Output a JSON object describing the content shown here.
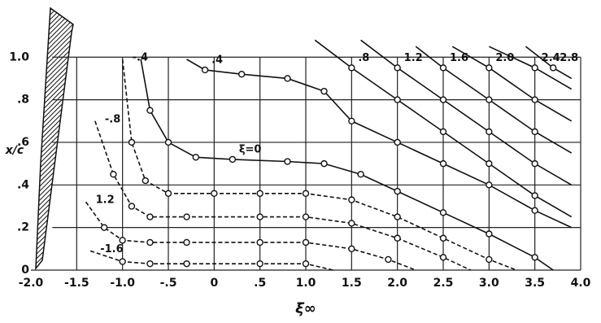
{
  "chart_data": {
    "type": "line",
    "x_label": "ξ∞",
    "y_label": "x/c",
    "xlim": [
      -2,
      4
    ],
    "ylim": [
      0,
      1.15
    ],
    "xticks": [
      {
        "value": -2,
        "label": "-2.0"
      },
      {
        "value": -1.5,
        "label": "-1.5"
      },
      {
        "value": -1,
        "label": "-1.0"
      },
      {
        "value": -0.5,
        "label": "-.5"
      },
      0,
      {
        "value": 0.5,
        "label": ".5"
      },
      {
        "value": 1,
        "label": "1.0"
      },
      {
        "value": 1.5,
        "label": "1.5"
      },
      {
        "value": 2,
        "label": "2.0"
      },
      {
        "value": 2.5,
        "label": "2.5"
      },
      {
        "value": 3,
        "label": "3.0"
      },
      {
        "value": 3.5,
        "label": "3.5"
      },
      {
        "value": 4,
        "label": "4.0"
      }
    ],
    "yticks": [
      0,
      {
        "value": 0.2,
        "label": ".2"
      },
      {
        "value": 0.4,
        "label": ".4"
      },
      {
        "value": 0.6,
        "label": ".6"
      },
      {
        "value": 0.8,
        "label": ".8"
      },
      {
        "value": 1,
        "label": "1.0"
      }
    ],
    "grid": true,
    "color": "#111111",
    "series": [
      {
        "name": "-1.6",
        "dashed": true,
        "x": [
          -1.35,
          -1.0,
          -0.7,
          -0.3,
          0.5,
          1.0,
          1.3
        ],
        "values": [
          0.09,
          0.04,
          0.03,
          0.03,
          0.03,
          0.03,
          0.0
        ]
      },
      {
        "name": "1.2",
        "dashed": true,
        "x": [
          -1.4,
          -1.2,
          -1.0,
          -0.7,
          -0.3,
          0.5,
          1.0,
          1.5,
          1.9,
          2.2
        ],
        "values": [
          0.32,
          0.2,
          0.14,
          0.13,
          0.13,
          0.13,
          0.13,
          0.1,
          0.05,
          0.0
        ]
      },
      {
        "name": "-.8",
        "dashed": true,
        "x": [
          -1.3,
          -1.1,
          -0.9,
          -0.7,
          -0.3,
          0.5,
          1.0,
          1.5,
          2.0,
          2.5,
          2.8
        ],
        "values": [
          0.7,
          0.45,
          0.3,
          0.25,
          0.25,
          0.25,
          0.25,
          0.22,
          0.15,
          0.06,
          0.0
        ]
      },
      {
        "name": "-.4",
        "dashed": true,
        "x": [
          -1.0,
          -0.9,
          -0.75,
          -0.5,
          0,
          0.5,
          1.0,
          1.5,
          2.0,
          2.5,
          3.0,
          3.3
        ],
        "values": [
          0.99,
          0.6,
          0.42,
          0.36,
          0.36,
          0.36,
          0.36,
          0.33,
          0.25,
          0.15,
          0.05,
          0.0
        ]
      },
      {
        "name": "ξ=0",
        "dashed": false,
        "x": [
          -0.8,
          -0.7,
          -0.5,
          -0.2,
          0.2,
          0.8,
          1.2,
          1.6,
          2.0,
          2.5,
          3.0,
          3.5,
          3.7
        ],
        "values": [
          0.99,
          0.75,
          0.6,
          0.53,
          0.52,
          0.51,
          0.5,
          0.45,
          0.37,
          0.27,
          0.17,
          0.06,
          0.0
        ]
      },
      {
        "name": ".4",
        "dashed": false,
        "x": [
          -0.3,
          -0.1,
          0.3,
          0.8,
          1.2,
          1.5,
          2.0,
          2.5,
          3.0,
          3.5,
          3.9
        ],
        "values": [
          0.99,
          0.94,
          0.92,
          0.9,
          0.84,
          0.7,
          0.6,
          0.5,
          0.4,
          0.28,
          0.2
        ]
      },
      {
        "name": ".8",
        "dashed": false,
        "x": [
          1.1,
          1.5,
          2.0,
          2.5,
          3.0,
          3.5,
          3.9
        ],
        "values": [
          1.08,
          0.95,
          0.8,
          0.65,
          0.5,
          0.35,
          0.25
        ]
      },
      {
        "name": "1.2",
        "dashed": false,
        "x": [
          1.6,
          2.0,
          2.5,
          3.0,
          3.5,
          3.9
        ],
        "values": [
          1.08,
          0.95,
          0.8,
          0.65,
          0.5,
          0.4
        ]
      },
      {
        "name": "1.6",
        "dashed": false,
        "x": [
          2.2,
          2.5,
          3.0,
          3.5,
          3.9
        ],
        "values": [
          1.05,
          0.95,
          0.8,
          0.65,
          0.55
        ]
      },
      {
        "name": "2.0",
        "dashed": false,
        "x": [
          2.6,
          3.0,
          3.5,
          3.9
        ],
        "values": [
          1.05,
          0.95,
          0.8,
          0.7
        ]
      },
      {
        "name": "2.4",
        "dashed": false,
        "x": [
          3.0,
          3.5,
          3.9
        ],
        "values": [
          1.05,
          0.95,
          0.85
        ]
      },
      {
        "name": "2.8",
        "dashed": false,
        "x": [
          3.4,
          3.7,
          3.9
        ],
        "values": [
          1.05,
          0.95,
          0.9
        ]
      }
    ]
  }
}
